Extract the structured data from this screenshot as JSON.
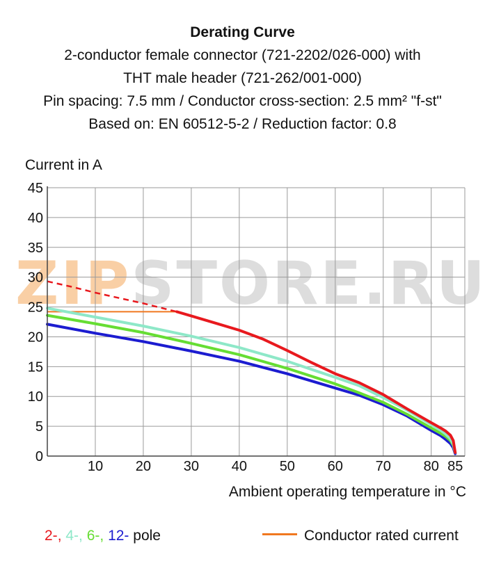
{
  "header": {
    "title": "Derating Curve",
    "line1": "2-conductor female connector (721-2202/026-000) with",
    "line2": "THT male header (721-262/001-000)",
    "line3": "Pin spacing: 7.5 mm / Conductor cross-section: 2.5 mm² \"f-st\"",
    "line4": "Based on: EN 60512-5-2 / Reduction factor: 0.8"
  },
  "watermark": {
    "part1": "ZIP",
    "part2": "STORE.RU",
    "accent_color": "#f08c28"
  },
  "legend": {
    "pole_2": "2-",
    "pole_4": "4-",
    "pole_6": "6-",
    "pole_12": "12-",
    "sep": ", ",
    "suffix": " pole",
    "rated": "Conductor rated current"
  },
  "colors": {
    "pole_2": "#e8191e",
    "pole_4": "#8ee8c8",
    "pole_6": "#66dd33",
    "pole_12": "#1c1cd0",
    "rated": "#f07820",
    "grid": "#9a9a9a",
    "axis": "#444444"
  },
  "chart_data": {
    "type": "line",
    "title": "Derating Curve",
    "xlabel": "Ambient operating temperature in °C",
    "ylabel": "Current in A",
    "xlim": [
      0,
      87
    ],
    "ylim": [
      0,
      45
    ],
    "xticks": [
      10,
      20,
      30,
      40,
      50,
      60,
      70,
      80,
      85
    ],
    "yticks": [
      0,
      5,
      10,
      15,
      20,
      25,
      30,
      35,
      40,
      45
    ],
    "grid": true,
    "legend": "bottom",
    "series": [
      {
        "name": "2-",
        "color": "#e8191e",
        "dashed": {
          "x": [
            0,
            5,
            10,
            15,
            20,
            25,
            27
          ],
          "y": [
            29.3,
            28.4,
            27.4,
            26.5,
            25.6,
            24.6,
            24.2
          ]
        },
        "x": [
          27,
          30,
          35,
          40,
          45,
          50,
          55,
          60,
          65,
          70,
          75,
          80,
          82,
          83,
          84,
          84.6,
          85
        ],
        "y": [
          24.2,
          23.5,
          22.3,
          21.1,
          19.6,
          17.7,
          15.7,
          13.8,
          12.3,
          10.3,
          7.9,
          5.6,
          4.7,
          4.2,
          3.5,
          2.6,
          0.6
        ]
      },
      {
        "name": "4-",
        "color": "#8ee8c8",
        "x": [
          0,
          10,
          20,
          30,
          40,
          50,
          60,
          65,
          70,
          75,
          80,
          82,
          83,
          84,
          84.6,
          85
        ],
        "y": [
          24.8,
          23.3,
          21.8,
          20.1,
          18.2,
          15.9,
          13.2,
          11.8,
          9.8,
          7.7,
          5.3,
          4.3,
          3.7,
          2.9,
          2.0,
          0.6
        ]
      },
      {
        "name": "6-",
        "color": "#66dd33",
        "x": [
          0,
          10,
          20,
          30,
          40,
          50,
          60,
          65,
          70,
          75,
          80,
          82,
          83,
          84,
          84.6,
          85
        ],
        "y": [
          23.6,
          22.2,
          20.7,
          18.9,
          17.0,
          14.7,
          12.1,
          10.6,
          9.0,
          7.0,
          4.7,
          3.8,
          3.3,
          2.6,
          1.8,
          0.6
        ]
      },
      {
        "name": "12-",
        "color": "#1c1cd0",
        "x": [
          0,
          10,
          20,
          30,
          40,
          50,
          60,
          65,
          70,
          75,
          80,
          82,
          83,
          84,
          84.6,
          85
        ],
        "y": [
          22.1,
          20.6,
          19.2,
          17.6,
          15.9,
          13.8,
          11.4,
          10.2,
          8.6,
          6.7,
          4.3,
          3.4,
          2.8,
          2.1,
          1.4,
          0.4
        ]
      }
    ],
    "rated_current": {
      "name": "Conductor rated current",
      "color": "#f07820",
      "x": [
        0,
        27
      ],
      "y": [
        24.2,
        24.2
      ]
    }
  }
}
